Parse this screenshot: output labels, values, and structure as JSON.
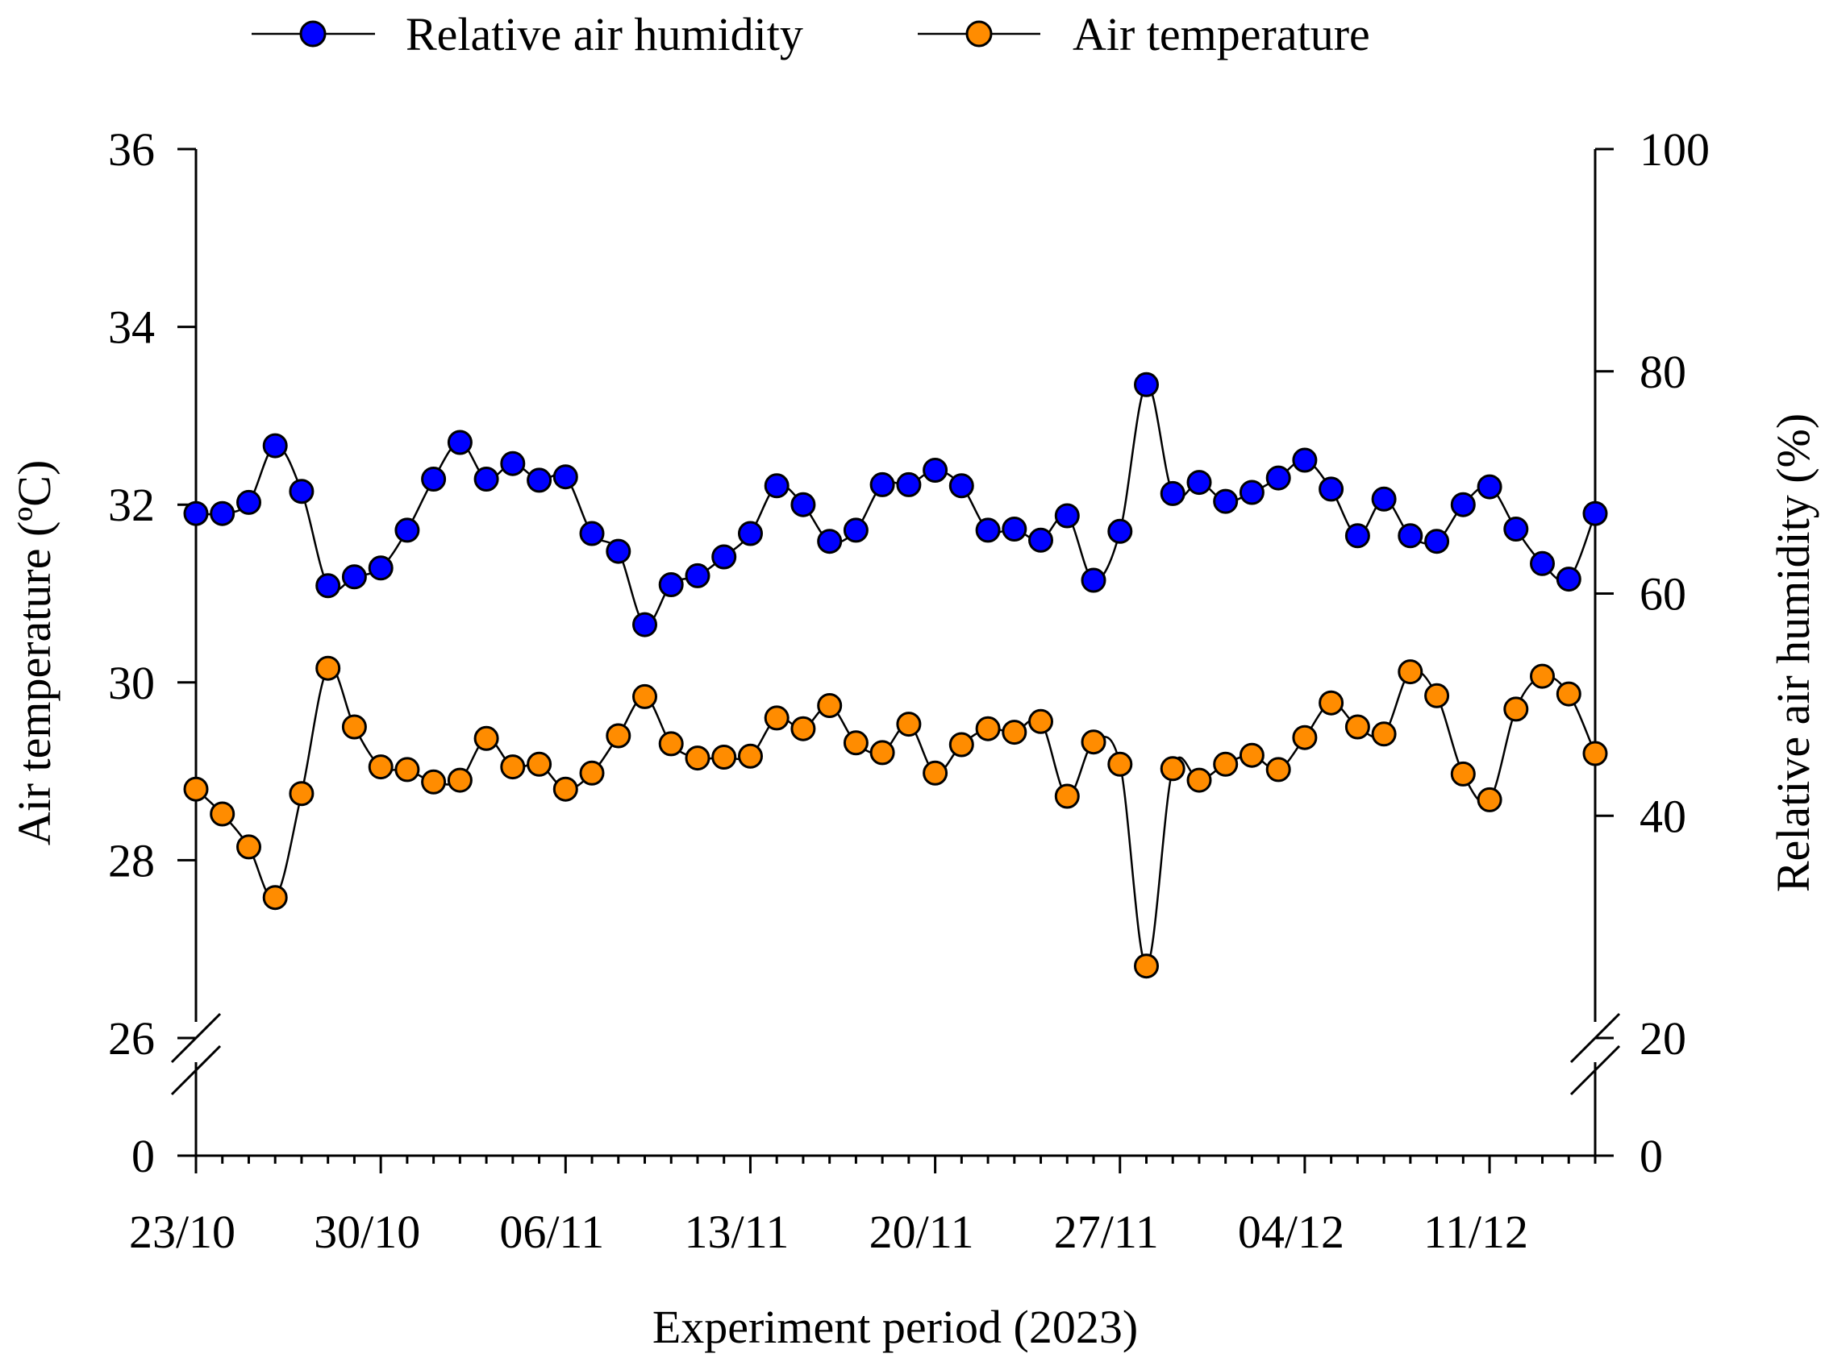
{
  "chart_data": {
    "type": "line",
    "xlabel": "Experiment period (2023)",
    "ylabel_left": "Air temperature (ºC)",
    "ylabel_right": "Relative air humidity (%)",
    "x_tick_labels": [
      "23/10",
      "30/10",
      "06/11",
      "13/11",
      "20/11",
      "27/11",
      "04/12",
      "11/12"
    ],
    "x_range_days": [
      0,
      53
    ],
    "left_axis": {
      "break": true,
      "ticks_below_break": [
        "0"
      ],
      "ticks_above_break": [
        "26",
        "28",
        "30",
        "32",
        "34",
        "36"
      ],
      "ylim": [
        26,
        36
      ]
    },
    "right_axis": {
      "break": true,
      "ticks_below_break": [
        "0"
      ],
      "ticks_above_break": [
        "20",
        "40",
        "60",
        "80",
        "100"
      ],
      "ylim": [
        20,
        100
      ]
    },
    "legend": {
      "position": "top"
    },
    "series": [
      {
        "name": "Relative air humidity",
        "axis": "right",
        "color": "#0000ff",
        "values": [
          67.2,
          67.2,
          68.2,
          73.3,
          69.2,
          60.7,
          61.5,
          62.3,
          65.7,
          70.3,
          73.6,
          70.3,
          71.7,
          70.2,
          70.5,
          65.4,
          63.8,
          57.2,
          60.8,
          61.6,
          63.3,
          65.4,
          69.7,
          68.0,
          64.7,
          65.7,
          69.8,
          69.8,
          71.1,
          69.7,
          65.7,
          65.8,
          64.8,
          67.0,
          61.2,
          65.6,
          78.8,
          69.0,
          70.0,
          68.3,
          69.1,
          70.4,
          72.0,
          69.4,
          65.2,
          68.5,
          65.2,
          64.7,
          68.0,
          69.6,
          65.8,
          62.7,
          61.3,
          67.2
        ]
      },
      {
        "name": "Air temperature",
        "axis": "left",
        "color": "#ff8c00",
        "values": [
          28.8,
          28.52,
          28.15,
          27.58,
          28.75,
          30.16,
          29.5,
          29.05,
          29.02,
          28.88,
          28.9,
          29.37,
          29.05,
          29.08,
          28.8,
          28.98,
          29.4,
          29.84,
          29.31,
          29.15,
          29.16,
          29.17,
          29.6,
          29.48,
          29.74,
          29.32,
          29.21,
          29.53,
          28.98,
          29.3,
          29.48,
          29.44,
          29.56,
          28.72,
          29.33,
          29.08,
          26.81,
          29.03,
          28.9,
          29.08,
          29.18,
          29.02,
          29.38,
          29.77,
          29.5,
          29.42,
          30.12,
          29.85,
          28.97,
          28.68,
          29.7,
          30.07,
          29.87,
          29.2
        ]
      }
    ]
  }
}
